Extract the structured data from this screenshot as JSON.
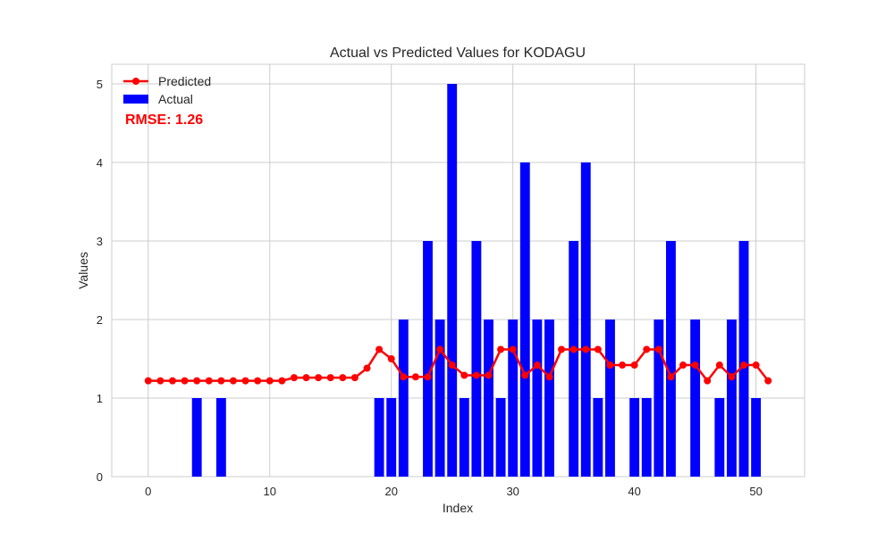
{
  "chart_data": {
    "type": "bar",
    "title": "Actual vs Predicted Values for KODAGU",
    "xlabel": "Index",
    "ylabel": "Values",
    "xlim": [
      -3,
      54
    ],
    "ylim": [
      0,
      5.25
    ],
    "x_ticks": [
      0,
      10,
      20,
      30,
      40,
      50
    ],
    "y_ticks": [
      0,
      1,
      2,
      3,
      4,
      5
    ],
    "grid": true,
    "legend_position": "top-left",
    "annotation": "RMSE: 1.26",
    "series": [
      {
        "name": "Actual",
        "kind": "bar",
        "color": "#0000ff",
        "x": [
          0,
          1,
          2,
          3,
          4,
          5,
          6,
          7,
          8,
          9,
          10,
          11,
          12,
          13,
          14,
          15,
          16,
          17,
          18,
          19,
          20,
          21,
          22,
          23,
          24,
          25,
          26,
          27,
          28,
          29,
          30,
          31,
          32,
          33,
          34,
          35,
          36,
          37,
          38,
          39,
          40,
          41,
          42,
          43,
          44,
          45,
          46,
          47,
          48,
          49,
          50,
          51
        ],
        "values": [
          0,
          0,
          0,
          0,
          1,
          0,
          1,
          0,
          0,
          0,
          0,
          0,
          0,
          0,
          0,
          0,
          0,
          0,
          0,
          1,
          1,
          2,
          0,
          3,
          2,
          5,
          1,
          3,
          2,
          1,
          2,
          4,
          2,
          2,
          0,
          3,
          4,
          1,
          2,
          0,
          1,
          1,
          2,
          3,
          0,
          2,
          0,
          1,
          2,
          3,
          1,
          0
        ]
      },
      {
        "name": "Predicted",
        "kind": "line",
        "color": "#ff0000",
        "x": [
          0,
          1,
          2,
          3,
          4,
          5,
          6,
          7,
          8,
          9,
          10,
          11,
          12,
          13,
          14,
          15,
          16,
          17,
          18,
          19,
          20,
          21,
          22,
          23,
          24,
          25,
          26,
          27,
          28,
          29,
          30,
          31,
          32,
          33,
          34,
          35,
          36,
          37,
          38,
          39,
          40,
          41,
          42,
          43,
          44,
          45,
          46,
          47,
          48,
          49,
          50,
          51
        ],
        "values": [
          1.22,
          1.22,
          1.22,
          1.22,
          1.22,
          1.22,
          1.22,
          1.22,
          1.22,
          1.22,
          1.22,
          1.22,
          1.26,
          1.26,
          1.26,
          1.26,
          1.26,
          1.26,
          1.38,
          1.62,
          1.5,
          1.27,
          1.27,
          1.27,
          1.62,
          1.42,
          1.29,
          1.29,
          1.29,
          1.62,
          1.62,
          1.29,
          1.42,
          1.27,
          1.62,
          1.62,
          1.62,
          1.62,
          1.42,
          1.42,
          1.42,
          1.62,
          1.62,
          1.27,
          1.42,
          1.42,
          1.22,
          1.42,
          1.27,
          1.42,
          1.42,
          1.22
        ]
      }
    ]
  }
}
